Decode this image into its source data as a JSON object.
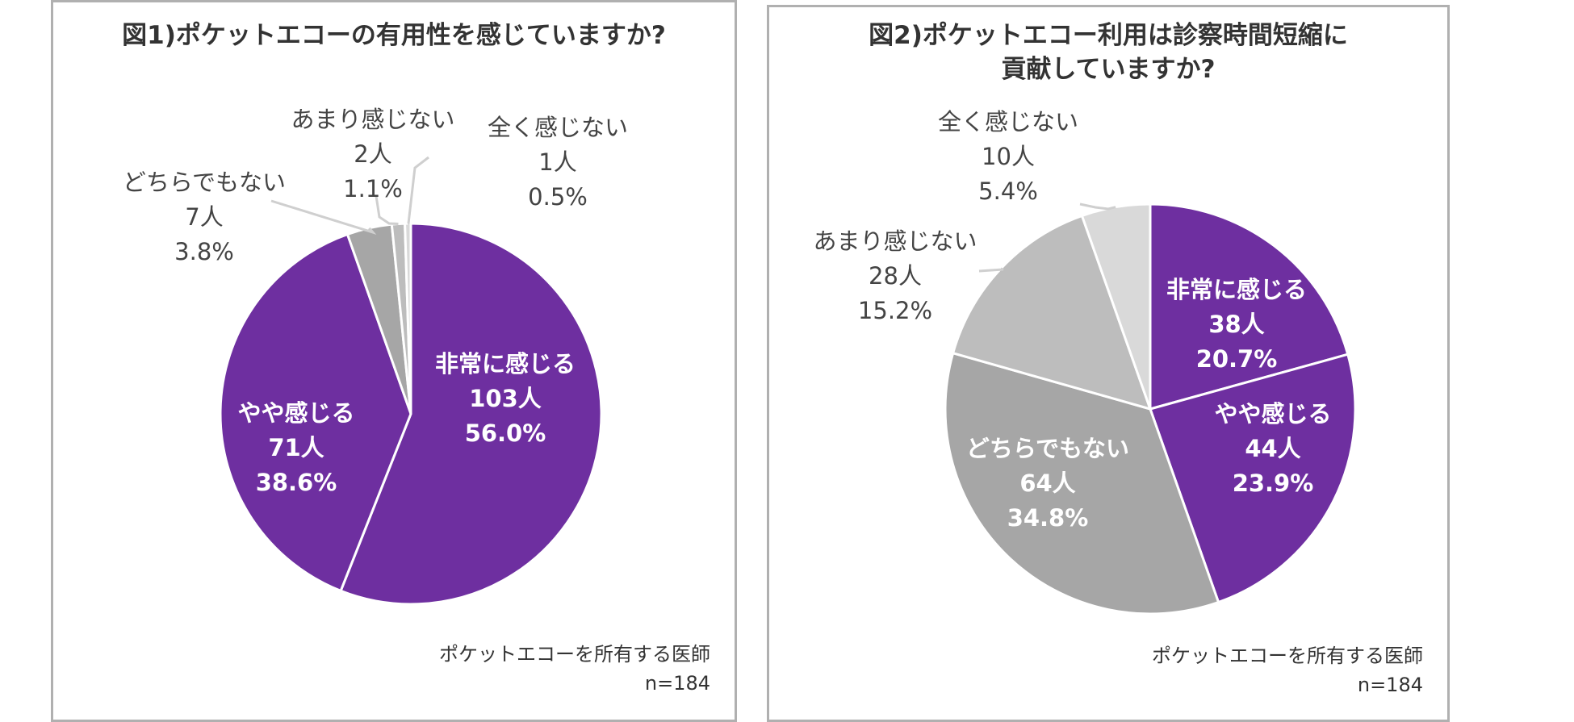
{
  "colors": {
    "purple": "#6e2fa0",
    "gray_dark": "#a6a6a6",
    "gray_mid": "#bdbdbd",
    "gray_light": "#d9d9d9",
    "leader": "#cfcfcf",
    "border": "#b0b0b0"
  },
  "chart_data": [
    {
      "type": "pie",
      "title": "図1)ポケットエコーの有用性を感じていますか?",
      "footnote": "ポケットエコーを所有する医師",
      "n_label": "n=184",
      "slices": [
        {
          "name": "非常に感じる",
          "count": "103人",
          "percent": "56.0%",
          "value": 56.0,
          "color": "#6e2fa0",
          "label_pos": "inside"
        },
        {
          "name": "やや感じる",
          "count": "71人",
          "percent": "38.6%",
          "value": 38.6,
          "color": "#6e2fa0",
          "label_pos": "inside"
        },
        {
          "name": "どちらでもない",
          "count": "7人",
          "percent": "3.8%",
          "value": 3.8,
          "color": "#a6a6a6",
          "label_pos": "outside"
        },
        {
          "name": "あまり感じない",
          "count": "2人",
          "percent": "1.1%",
          "value": 1.1,
          "color": "#bdbdbd",
          "label_pos": "outside"
        },
        {
          "name": "全く感じない",
          "count": "1人",
          "percent": "0.5%",
          "value": 0.5,
          "color": "#d9d9d9",
          "label_pos": "outside"
        }
      ]
    },
    {
      "type": "pie",
      "title": "図2)ポケットエコー利用は診察時間短縮に貢献していますか?",
      "title_lines": [
        "図2)ポケットエコー利用は診察時間短縮に",
        "貢献していますか?"
      ],
      "footnote": "ポケットエコーを所有する医師",
      "n_label": "n=184",
      "slices": [
        {
          "name": "非常に感じる",
          "count": "38人",
          "percent": "20.7%",
          "value": 20.7,
          "color": "#6e2fa0",
          "label_pos": "inside"
        },
        {
          "name": "やや感じる",
          "count": "44人",
          "percent": "23.9%",
          "value": 23.9,
          "color": "#6e2fa0",
          "label_pos": "inside"
        },
        {
          "name": "どちらでもない",
          "count": "64人",
          "percent": "34.8%",
          "value": 34.8,
          "color": "#a6a6a6",
          "label_pos": "inside"
        },
        {
          "name": "あまり感じない",
          "count": "28人",
          "percent": "15.2%",
          "value": 15.2,
          "color": "#bdbdbd",
          "label_pos": "outside"
        },
        {
          "name": "全く感じない",
          "count": "10人",
          "percent": "5.4%",
          "value": 5.4,
          "color": "#d9d9d9",
          "label_pos": "outside"
        }
      ]
    }
  ]
}
